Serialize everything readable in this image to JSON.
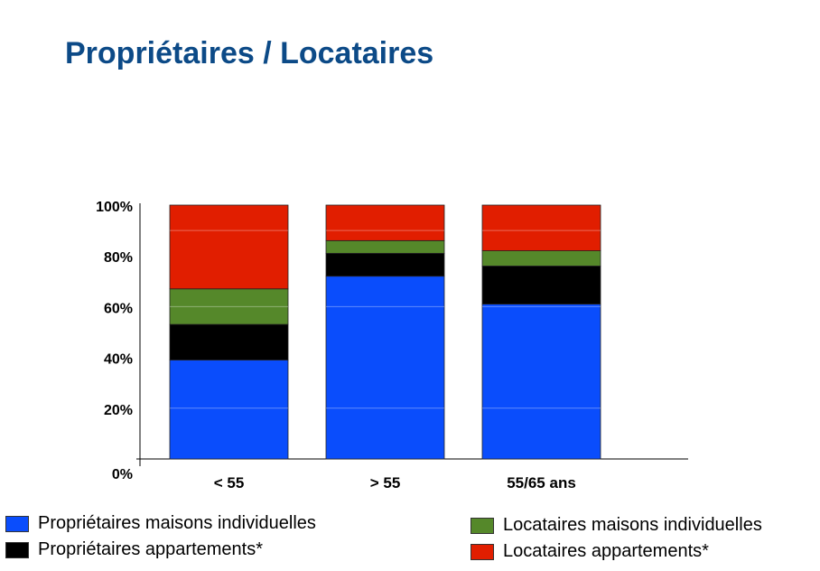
{
  "title": "Propriétaires / Locataires",
  "chart_data": {
    "type": "bar",
    "stacked": true,
    "categories": [
      "< 55",
      "> 55",
      "55/65 ans"
    ],
    "yticks": [
      "0%",
      "20%",
      "40%",
      "60%",
      "80%",
      "100%"
    ],
    "ylim": [
      0,
      100
    ],
    "grid": true,
    "legend_position": "bottom",
    "series": [
      {
        "name": "Propriétaires maisons individuelles",
        "color": "#0a4dfc",
        "values": [
          39,
          72,
          61
        ]
      },
      {
        "name": "Propriétaires appartements*",
        "color": "#000000",
        "values": [
          14,
          9,
          15
        ]
      },
      {
        "name": "Locataires maisons individuelles",
        "color": "#55882a",
        "values": [
          14,
          5,
          6
        ]
      },
      {
        "name": "Locataires appartements*",
        "color": "#e11e00",
        "values": [
          33,
          14,
          18
        ]
      }
    ]
  }
}
